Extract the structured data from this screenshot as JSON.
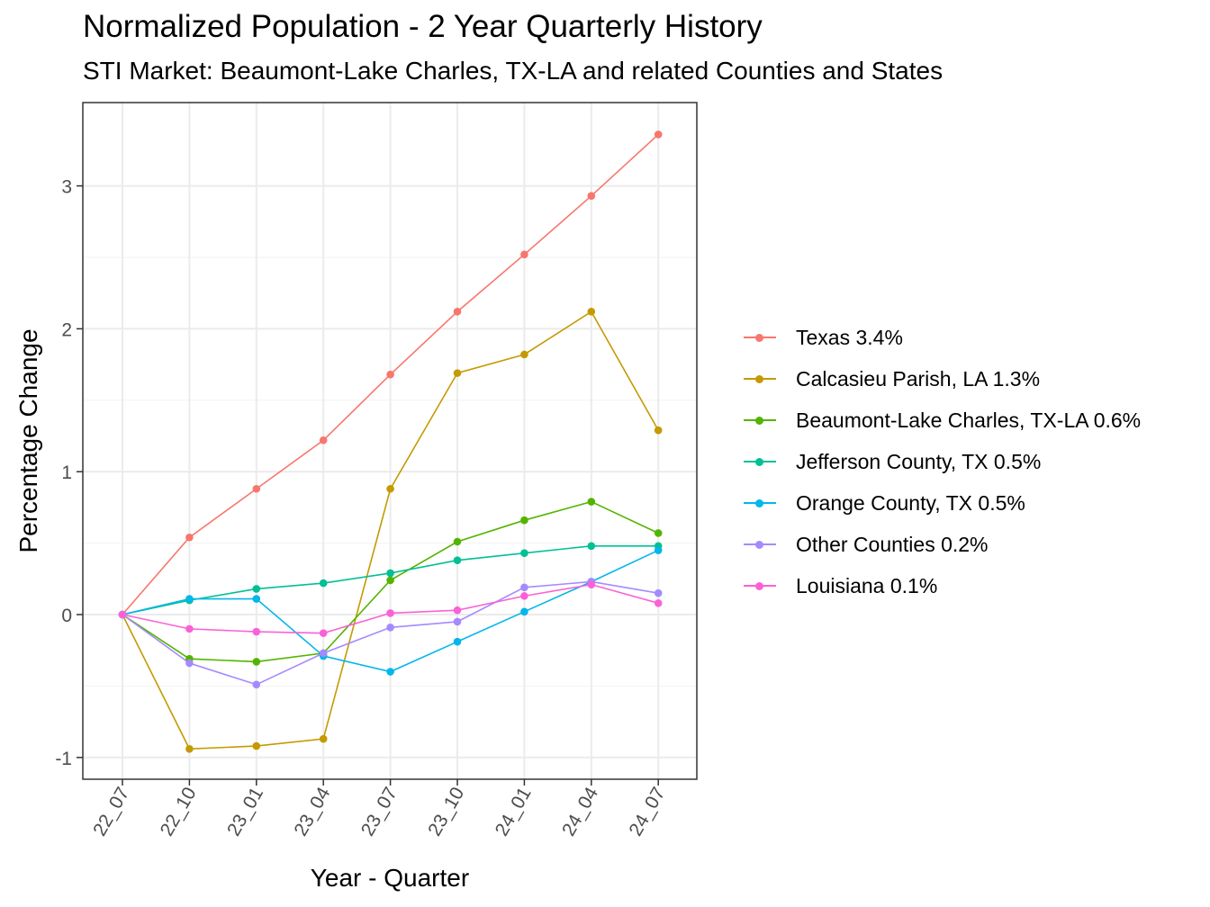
{
  "title": "Normalized Population - 2 Year Quarterly History",
  "subtitle": "STI Market: Beaumont-Lake Charles, TX-LA and related Counties and States",
  "chart_data": {
    "type": "line",
    "xlabel": "Year - Quarter",
    "ylabel": "Percentage Change",
    "categories": [
      "22_07",
      "22_10",
      "23_01",
      "23_04",
      "23_07",
      "23_10",
      "24_01",
      "24_04",
      "24_07"
    ],
    "yticks": [
      "-1",
      "0",
      "1",
      "2",
      "3"
    ],
    "ylim": [
      -1.15,
      3.6
    ],
    "grid": true,
    "legend_position": "right",
    "series": [
      {
        "name": "Texas 3.4%",
        "color": "#F8766D",
        "values": [
          0,
          0.54,
          0.88,
          1.22,
          1.68,
          2.12,
          2.52,
          2.93,
          3.36
        ]
      },
      {
        "name": "Calcasieu Parish, LA 1.3%",
        "color": "#C49A00",
        "values": [
          0,
          -0.94,
          -0.92,
          -0.87,
          0.88,
          1.69,
          1.82,
          2.12,
          1.29
        ]
      },
      {
        "name": "Beaumont-Lake Charles, TX-LA 0.6%",
        "color": "#53B400",
        "values": [
          0,
          -0.31,
          -0.33,
          -0.27,
          0.24,
          0.51,
          0.66,
          0.79,
          0.57
        ]
      },
      {
        "name": "Jefferson County, TX 0.5%",
        "color": "#00C094",
        "values": [
          0,
          0.1,
          0.18,
          0.22,
          0.29,
          0.38,
          0.43,
          0.48,
          0.48
        ]
      },
      {
        "name": "Orange County, TX 0.5%",
        "color": "#00B6EB",
        "values": [
          0,
          0.11,
          0.11,
          -0.29,
          -0.4,
          -0.19,
          0.02,
          0.23,
          0.45
        ]
      },
      {
        "name": "Other Counties 0.2%",
        "color": "#A58AFF",
        "values": [
          0,
          -0.34,
          -0.49,
          -0.27,
          -0.09,
          -0.05,
          0.19,
          0.23,
          0.15
        ]
      },
      {
        "name": "Louisiana 0.1%",
        "color": "#FB61D7",
        "values": [
          0,
          -0.1,
          -0.12,
          -0.13,
          0.01,
          0.03,
          0.13,
          0.21,
          0.08
        ]
      }
    ]
  }
}
